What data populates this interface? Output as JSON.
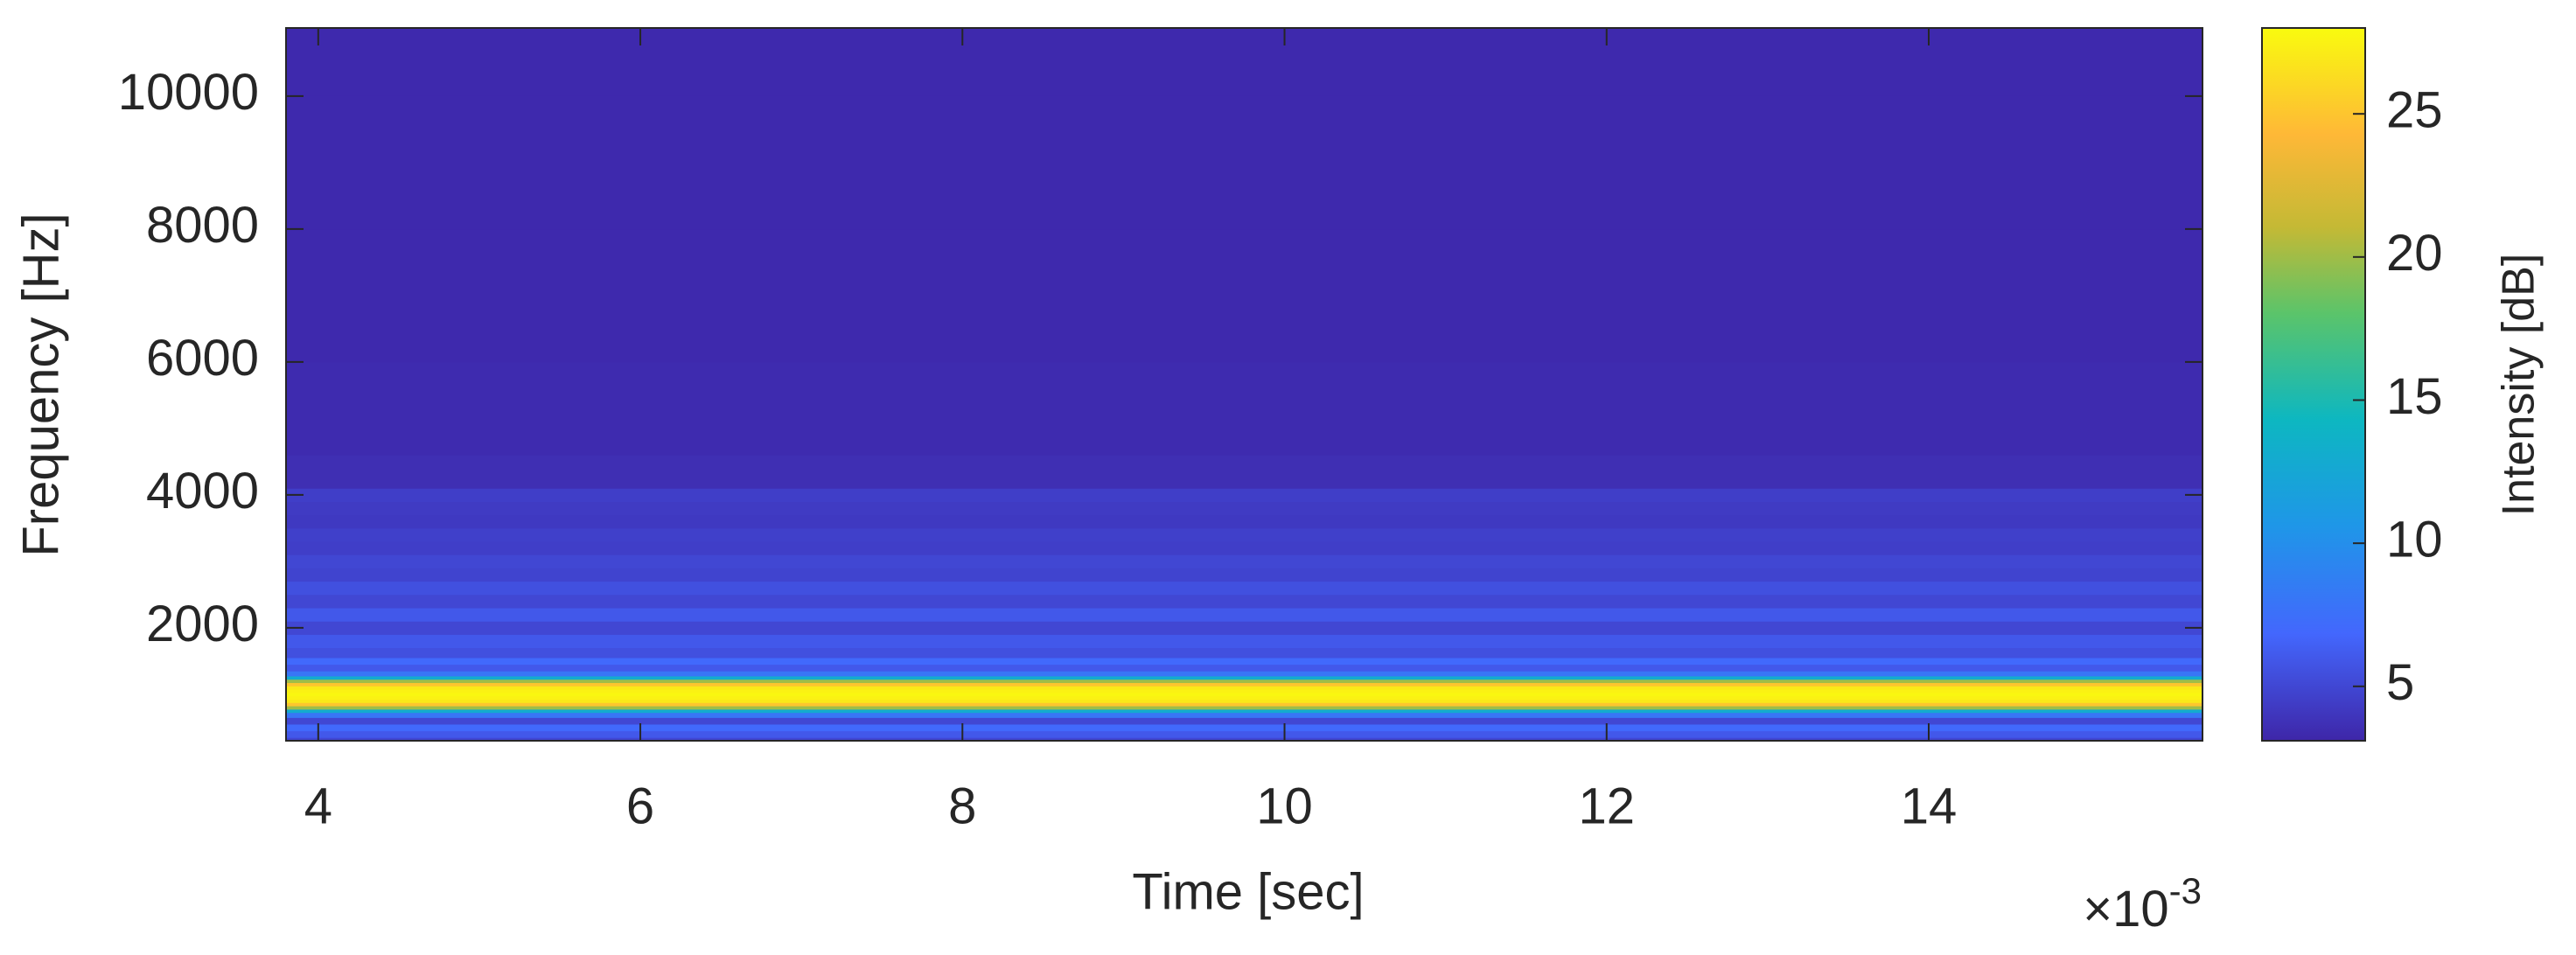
{
  "chart_data": {
    "type": "spectrogram",
    "xlabel": "Time [sec]",
    "ylabel": "Frequency [Hz]",
    "x_multiplier": {
      "base": "×10",
      "exponent": "-3"
    },
    "xlim": [
      3.8,
      15.7
    ],
    "xticks": [
      4,
      6,
      8,
      10,
      12,
      14
    ],
    "ylim": [
      300,
      11025
    ],
    "yticks": [
      2000,
      4000,
      6000,
      8000,
      10000
    ],
    "frequencies": [
      300,
      400,
      500,
      600,
      700,
      750,
      800,
      850,
      900,
      950,
      1000,
      1050,
      1100,
      1150,
      1200,
      1250,
      1300,
      1400,
      1500,
      1600,
      1800,
      2000,
      2200,
      2400,
      2600,
      2800,
      3000,
      3200,
      3400,
      3600,
      3800,
      4000,
      4200,
      5000,
      7000,
      9000,
      11025
    ],
    "values": [
      5,
      6,
      7,
      5,
      8,
      13,
      20,
      25,
      27,
      27.5,
      27.8,
      27.5,
      27,
      25,
      20,
      13,
      8,
      6,
      7,
      5.5,
      6,
      5,
      6,
      5,
      5.5,
      4.8,
      5,
      4.5,
      4.6,
      4.2,
      4.3,
      4.5,
      3.6,
      3.4,
      3.3,
      3.3,
      3.3
    ],
    "colormap": "parula",
    "colorbar": {
      "label": "Intensity [dB]",
      "clim": [
        3.1,
        28
      ],
      "ticks": [
        5,
        10,
        15,
        20,
        25
      ]
    }
  }
}
